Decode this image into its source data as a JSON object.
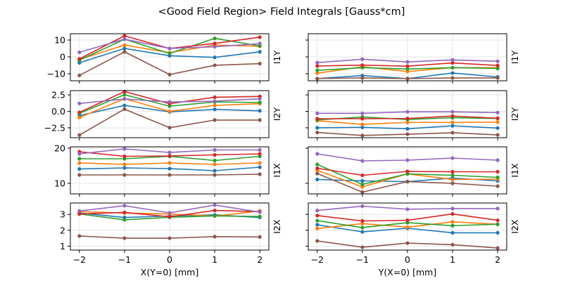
{
  "chart_data": {
    "type": "line",
    "title": "<Good Field Region> Field Integrals [Gauss*cm]",
    "grid": true,
    "series_colors": [
      "#1f77b4",
      "#ff7f0e",
      "#2ca02c",
      "#d62728",
      "#9467bd",
      "#8c564b"
    ],
    "columns": [
      {
        "xlabel": "X(Y=0) [mm]",
        "x": [
          -2,
          -1,
          0,
          1,
          2
        ],
        "xlim": [
          -2.2,
          2.2
        ],
        "xticks": [
          "−2",
          "−1",
          "0",
          "1",
          "2"
        ]
      },
      {
        "xlabel": "Y(X=0) [mm]",
        "x": [
          -2,
          -1,
          0,
          1,
          2
        ],
        "xlim": [
          -2.2,
          2.2
        ],
        "xticks": [
          "−2",
          "−1",
          "0",
          "1",
          "2"
        ]
      }
    ],
    "rows": [
      {
        "ylabel": "I1Y",
        "ylim": [
          -14.2,
          13.75
        ],
        "yticks": [
          {
            "value": 10,
            "label": "10"
          },
          {
            "value": 0,
            "label": "0"
          },
          {
            "value": -10,
            "label": "−10"
          }
        ],
        "panels": [
          {
            "series": [
              {
                "values": [
                  -3.5,
                  5,
                  0.7,
                  -0.3,
                  3
                ]
              },
              {
                "values": [
                  -1.5,
                  7,
                  2.5,
                  7,
                  6.3
                ]
              },
              {
                "values": [
                  -2,
                  10.5,
                  2,
                  11,
                  6.5
                ]
              },
              {
                "values": [
                  -1.2,
                  12.5,
                  5,
                  8,
                  11.7
                ]
              },
              {
                "values": [
                  2.7,
                  10.5,
                  5,
                  6,
                  7.9
                ]
              },
              {
                "values": [
                  -11,
                  3,
                  -10.5,
                  -5,
                  -4
                ]
              }
            ]
          },
          {
            "series": [
              {
                "values": [
                  -12.9,
                  -11.1,
                  -12.9,
                  -9.6,
                  -11.9
                ]
              },
              {
                "values": [
                  -9.7,
                  -5.9,
                  -8.7,
                  -6.4,
                  -6.4
                ]
              },
              {
                "values": [
                  -8,
                  -6.4,
                  -7.2,
                  -6.4,
                  -6.9
                ]
              },
              {
                "values": [
                  -5.4,
                  -4.9,
                  -5.5,
                  -3.6,
                  -5.1
                ]
              },
              {
                "values": [
                  -3.4,
                  -1.4,
                  -3,
                  -1.8,
                  -2.6
                ]
              },
              {
                "values": [
                  -12.9,
                  -12.5,
                  -12.9,
                  -12.5,
                  -12.5
                ]
              }
            ]
          }
        ]
      },
      {
        "ylabel": "I2Y",
        "ylim": [
          -4.0,
          3.15
        ],
        "yticks": [
          {
            "value": 2.5,
            "label": "2.5"
          },
          {
            "value": 0,
            "label": "0.0"
          },
          {
            "value": -2.5,
            "label": "−2.5"
          }
        ],
        "panels": [
          {
            "series": [
              {
                "values": [
                  -0.64,
                  0.9,
                  -0.08,
                  0.3,
                  0.08
                ]
              },
              {
                "values": [
                  -0.94,
                  1.92,
                  0,
                  0.9,
                  1.17
                ]
              },
              {
                "values": [
                  -0.3,
                  2.52,
                  0.79,
                  1.43,
                  1.35
                ]
              },
              {
                "values": [
                  -0.15,
                  3.0,
                  1.17,
                  2.14,
                  2.26
                ]
              },
              {
                "values": [
                  1.2,
                  1.88,
                  1.43,
                  1.54,
                  1.92
                ]
              },
              {
                "values": [
                  -3.6,
                  0.34,
                  -2.48,
                  -1.32,
                  -1.32
                ]
              }
            ]
          },
          {
            "series": [
              {
                "values": [
                  -2.5,
                  -2.43,
                  -2.65,
                  -2.2,
                  -2.54
                ]
              },
              {
                "values": [
                  -1.42,
                  -1.98,
                  -1.68,
                  -1.68,
                  -1.64
                ]
              },
              {
                "values": [
                  -1.3,
                  -0.86,
                  -1.23,
                  -0.97,
                  -1.08
                ]
              },
              {
                "values": [
                  -1.12,
                  -1.12,
                  -1.08,
                  -0.71,
                  -1.04
                ]
              },
              {
                "values": [
                  -0.3,
                  -0.3,
                  -0.07,
                  -0.07,
                  -0.19
                ]
              },
              {
                "values": [
                  -3.21,
                  -3.66,
                  -3.47,
                  -3.25,
                  -3.58
                ]
              }
            ]
          }
        ]
      },
      {
        "ylabel": "I1X",
        "ylim": [
          7.0,
          20.4
        ],
        "yticks": [
          {
            "value": 20,
            "label": "20"
          },
          {
            "value": 10,
            "label": "10"
          }
        ],
        "panels": [
          {
            "series": [
              {
                "values": [
                  14.1,
                  14.4,
                  14.2,
                  13.6,
                  14.6
                ]
              },
              {
                "values": [
                  15.8,
                  15.4,
                  15.8,
                  15.4,
                  15.8
                ]
              },
              {
                "values": [
                  17,
                  17,
                  17.7,
                  16.5,
                  17.7
                ]
              },
              {
                "values": [
                  19,
                  17.7,
                  17.8,
                  18.1,
                  18.4
                ]
              },
              {
                "values": [
                  18.4,
                  19.8,
                  18.8,
                  19.5,
                  19.5
                ]
              },
              {
                "values": [
                  12.4,
                  12.4,
                  12.4,
                  12.4,
                  12.6
                ]
              }
            ]
          },
          {
            "series": [
              {
                "values": [
                  11.1,
                  10.7,
                  10.5,
                  11.5,
                  10.7
                ]
              },
              {
                "values": [
                  13.7,
                  9.0,
                  12.7,
                  11.1,
                  11.2
                ]
              },
              {
                "values": [
                  15.4,
                  9.7,
                  12.7,
                  12.3,
                  11.7
                ]
              },
              {
                "values": [
                  14.3,
                  12.3,
                  13.4,
                  13.3,
                  13.3
                ]
              },
              {
                "values": [
                  18.4,
                  16.4,
                  16.6,
                  17.2,
                  16.6
                ]
              },
              {
                "values": [
                  12.8,
                  7.5,
                  10.5,
                  10.0,
                  9.2
                ]
              }
            ]
          }
        ]
      },
      {
        "ylabel": "I2X",
        "ylim": [
          0.75,
          3.72
        ],
        "yticks": [
          {
            "value": 3,
            "label": "3"
          },
          {
            "value": 2,
            "label": "2"
          },
          {
            "value": 1,
            "label": "1"
          }
        ],
        "panels": [
          {
            "series": [
              {
                "values": [
                  3.09,
                  2.81,
                  2.9,
                  2.97,
                  2.81
                ]
              },
              {
                "values": [
                  3.18,
                  3.09,
                  3.03,
                  2.9,
                  3.22
                ]
              },
              {
                "values": [
                  3.03,
                  2.66,
                  2.82,
                  2.91,
                  2.87
                ]
              },
              {
                "values": [
                  3.03,
                  3.13,
                  2.85,
                  3.25,
                  3.18
                ]
              },
              {
                "values": [
                  3.22,
                  3.55,
                  3.1,
                  3.59,
                  3.15
                ]
              },
              {
                "values": [
                  1.64,
                  1.5,
                  1.5,
                  1.6,
                  1.58
                ]
              }
            ]
          },
          {
            "series": [
              {
                "values": [
                  2.35,
                  1.9,
                  2.13,
                  1.84,
                  1.84
                ]
              },
              {
                "values": [
                  2.11,
                  2.42,
                  2.2,
                  2.53,
                  2.38
                ]
              },
              {
                "values": [
                  2.61,
                  2.17,
                  2.48,
                  2.29,
                  2.38
                ]
              },
              {
                "values": [
                  2.93,
                  2.59,
                  2.63,
                  3.03,
                  2.63
                ]
              },
              {
                "values": [
                  3.25,
                  3.52,
                  3.33,
                  3.37,
                  3.37
                ]
              },
              {
                "values": [
                  1.33,
                  0.93,
                  1.19,
                  1.09,
                  0.88
                ]
              }
            ]
          }
        ]
      }
    ]
  }
}
